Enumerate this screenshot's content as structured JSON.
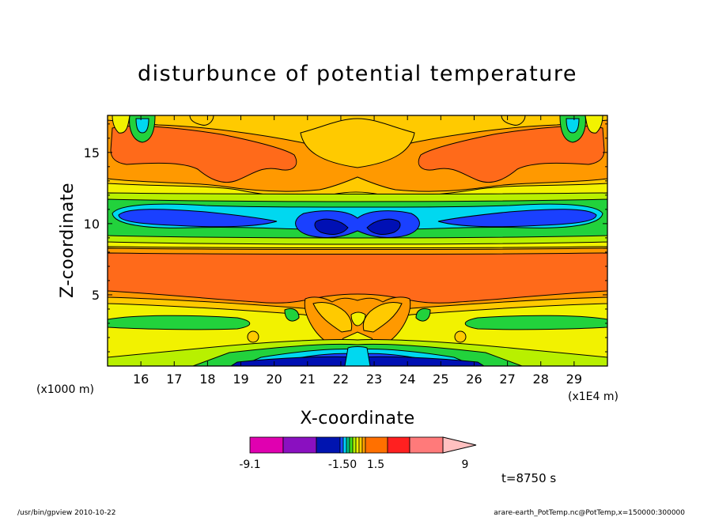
{
  "chart_data": {
    "type": "heatmap",
    "title": "disturbunce of potential temperature",
    "xlabel": "X-coordinate",
    "ylabel": "Z-coordinate",
    "x_unit_note": "(x1E4 m)",
    "y_unit_note": "(x1000 m)",
    "x_ticks": [
      "16",
      "17",
      "18",
      "19",
      "20",
      "21",
      "22",
      "23",
      "24",
      "25",
      "26",
      "27",
      "28",
      "29"
    ],
    "y_ticks": [
      "5",
      "10",
      "15"
    ],
    "xlim": [
      15,
      30
    ],
    "ylim": [
      0,
      17.6
    ],
    "colorbar": {
      "labels": [
        "-9.1",
        "-1.50",
        "1.5",
        "9"
      ],
      "colors": [
        "#e000b0",
        "#8a10c0",
        "#0014b0",
        "#1a50ff",
        "#00d0ff",
        "#00c080",
        "#40e020",
        "#b0f000",
        "#f0f000",
        "#ffd000",
        "#ffa000",
        "#ff7000",
        "#ff2020",
        "#ff7a7a",
        "#ffc0c0"
      ]
    },
    "field_colors": {
      "yellow": "#f2f200",
      "light_orange": "#ffca00",
      "orange": "#ff9900",
      "red_orange": "#ff6a1a",
      "yellow_green": "#b8f000",
      "green": "#22d23c",
      "cyan": "#00d8f0",
      "blue": "#1a40ff",
      "navy": "#0010b4"
    }
  },
  "annotations": {
    "time": "t=8750 s",
    "footer_left": "/usr/bin/gpview   2010-10-22",
    "footer_right": "arare-earth_PotTemp.nc@PotTemp,x=150000:300000"
  }
}
